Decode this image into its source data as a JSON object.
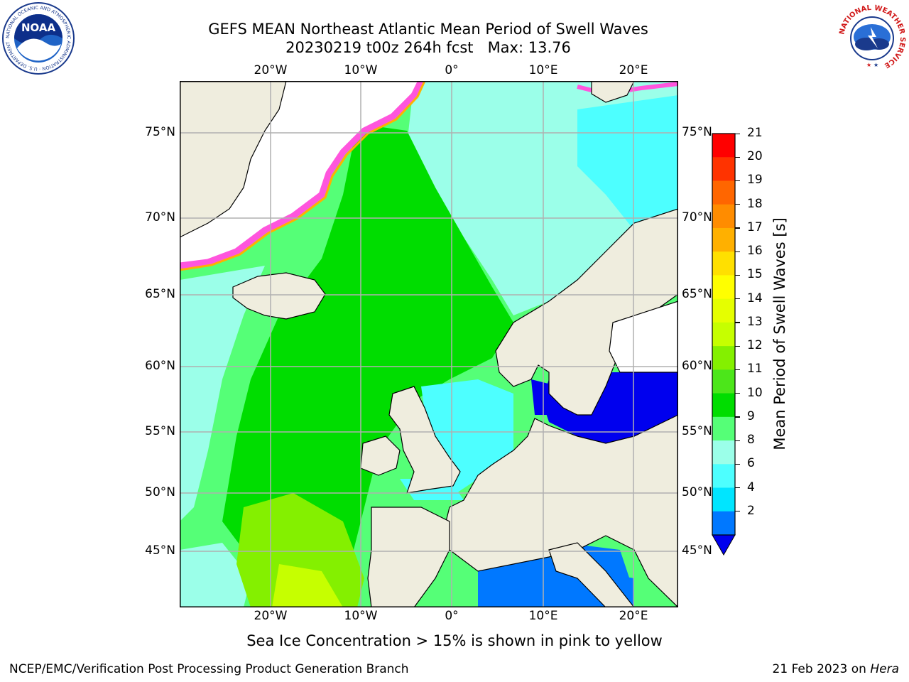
{
  "title_line1": "GEFS MEAN Northeast Atlantic Mean Period of Swell Waves",
  "title_line2": "20230219 t00z 264h fcst   Max: 13.76",
  "lon_ticks": [
    "20°W",
    "10°W",
    "0°",
    "10°E",
    "20°E"
  ],
  "lat_ticks": [
    "75°N",
    "70°N",
    "65°N",
    "60°N",
    "55°N",
    "50°N",
    "45°N"
  ],
  "colorbar": {
    "label": "Mean Period of Swell Waves [s]",
    "ticks": [
      "21",
      "20",
      "19",
      "18",
      "17",
      "16",
      "15",
      "14",
      "13",
      "12",
      "11",
      "10",
      "9",
      "8",
      "6",
      "4",
      "2"
    ],
    "colors": [
      "#ff0000",
      "#ff3300",
      "#ff6600",
      "#ff8c00",
      "#ffb000",
      "#ffe000",
      "#ffff00",
      "#e5ff00",
      "#c6ff00",
      "#84f000",
      "#4ce61a",
      "#00dd00",
      "#55ff77",
      "#9bffe9",
      "#4dffff",
      "#00e5ff",
      "#0078ff"
    ],
    "extend_color": "#0000ee"
  },
  "caption": "Sea Ice Concentration > 15% is shown in pink to yellow",
  "footer_left": "NCEP/EMC/Verification Post Processing Product Generation Branch",
  "footer_right_date": "21 Feb 2023 on ",
  "footer_right_host": "Hera",
  "logos": {
    "noaa": "NOAA",
    "noaa_ring": "NATIONAL OCEANIC AND ATMOSPHERIC ADMINISTRATION · U.S. DEPARTMENT OF COMMERCE ·",
    "nws_ring": "NATIONAL WEATHER SERVICE"
  },
  "colors": {
    "land": "#efedde",
    "grid": "#b0b0b0",
    "ice_edge": "#ff55dd"
  }
}
